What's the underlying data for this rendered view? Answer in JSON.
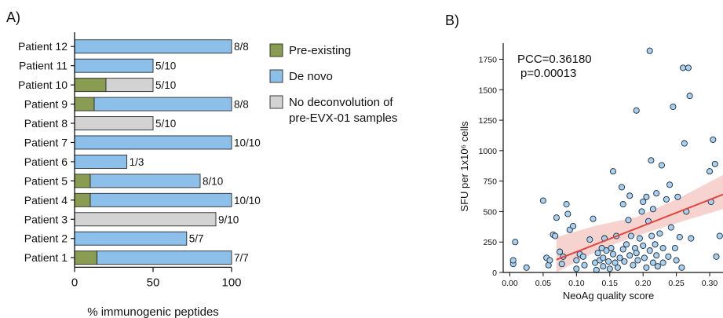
{
  "chart_data": [
    {
      "panel_label": "A)",
      "type": "bar",
      "orientation": "horizontal",
      "stacked": true,
      "categories": [
        "Patient 12",
        "Patient 11",
        "Patient 10",
        "Patient 9",
        "Patient 8",
        "Patient 7",
        "Patient 6",
        "Patient 5",
        "Patient 4",
        "Patient 3",
        "Patient 2",
        "Patient 1"
      ],
      "series": [
        {
          "name": "Pre-existing",
          "color": "#8a9b52",
          "values": [
            0,
            0,
            20,
            12.5,
            0,
            0,
            0,
            10,
            10,
            0,
            0,
            14.3
          ]
        },
        {
          "name": "De novo",
          "color": "#8cc0ea",
          "values": [
            100,
            50,
            0,
            87.5,
            0,
            100,
            33.3,
            70,
            90,
            0,
            71.4,
            85.7
          ]
        },
        {
          "name": "No deconvolution of\npre-EVX-01 samples",
          "color": "#d3d3d3",
          "values": [
            0,
            0,
            30,
            0,
            50,
            0,
            0,
            0,
            0,
            90,
            0,
            0
          ]
        }
      ],
      "bar_labels": [
        "8/8",
        "5/10",
        "5/10",
        "8/8",
        "5/10",
        "10/10",
        "1/3",
        "8/10",
        "10/10",
        "9/10",
        "5/7",
        "7/7"
      ],
      "xlabel": "% immunogenic peptides",
      "ylabel": "",
      "xlim": [
        0,
        100
      ],
      "xticks": [
        0,
        50,
        100
      ],
      "grid": false,
      "legend": "right"
    },
    {
      "panel_label": "B)",
      "type": "scatter",
      "xlabel": "NeoAg quality score",
      "ylabel": "SFU per 1x10⁶ cells",
      "xlim": [
        -0.01,
        0.32
      ],
      "ylim": [
        0,
        1850
      ],
      "xticks": [
        0.0,
        0.05,
        0.1,
        0.15,
        0.2,
        0.25,
        0.3
      ],
      "xtick_labels": [
        "0.00",
        "0.05",
        "0.10",
        "0.15",
        "0.20",
        "0.25",
        "0.30"
      ],
      "yticks": [
        0,
        250,
        500,
        750,
        1000,
        1250,
        1500,
        1750
      ],
      "annotation_lines": [
        "PCC=0.36180",
        "p=0.00013"
      ],
      "point_color": "#a9d0ee",
      "fit_color": "#e0443c",
      "band_color": "#f4c4c0",
      "regression": {
        "x": [
          0.07,
          0.32
        ],
        "y": [
          105,
          640
        ]
      },
      "confidence_band": {
        "x": [
          0.07,
          0.13,
          0.19,
          0.25,
          0.32
        ],
        "lower": [
          0,
          175,
          300,
          405,
          520
        ],
        "upper": [
          290,
          385,
          455,
          600,
          800
        ]
      },
      "points": [
        [
          0.005,
          70
        ],
        [
          0.005,
          100
        ],
        [
          0.008,
          250
        ],
        [
          0.025,
          40
        ],
        [
          0.05,
          590
        ],
        [
          0.055,
          120
        ],
        [
          0.058,
          60
        ],
        [
          0.06,
          100
        ],
        [
          0.065,
          310
        ],
        [
          0.068,
          300
        ],
        [
          0.07,
          450
        ],
        [
          0.075,
          170
        ],
        [
          0.078,
          70
        ],
        [
          0.08,
          130
        ],
        [
          0.085,
          560
        ],
        [
          0.087,
          480
        ],
        [
          0.09,
          350
        ],
        [
          0.095,
          380
        ],
        [
          0.1,
          100
        ],
        [
          0.1,
          30
        ],
        [
          0.105,
          150
        ],
        [
          0.11,
          130
        ],
        [
          0.112,
          60
        ],
        [
          0.12,
          270
        ],
        [
          0.125,
          440
        ],
        [
          0.128,
          80
        ],
        [
          0.13,
          20
        ],
        [
          0.132,
          160
        ],
        [
          0.135,
          100
        ],
        [
          0.138,
          200
        ],
        [
          0.14,
          120
        ],
        [
          0.14,
          50
        ],
        [
          0.142,
          280
        ],
        [
          0.145,
          180
        ],
        [
          0.148,
          90
        ],
        [
          0.15,
          30
        ],
        [
          0.152,
          200
        ],
        [
          0.155,
          150
        ],
        [
          0.155,
          830
        ],
        [
          0.158,
          80
        ],
        [
          0.16,
          300
        ],
        [
          0.162,
          40
        ],
        [
          0.165,
          120
        ],
        [
          0.168,
          700
        ],
        [
          0.17,
          190
        ],
        [
          0.17,
          560
        ],
        [
          0.172,
          90
        ],
        [
          0.175,
          230
        ],
        [
          0.178,
          430
        ],
        [
          0.18,
          630
        ],
        [
          0.18,
          140
        ],
        [
          0.182,
          300
        ],
        [
          0.185,
          60
        ],
        [
          0.188,
          200
        ],
        [
          0.19,
          1330
        ],
        [
          0.19,
          160
        ],
        [
          0.192,
          100
        ],
        [
          0.195,
          280
        ],
        [
          0.198,
          500
        ],
        [
          0.2,
          580
        ],
        [
          0.2,
          220
        ],
        [
          0.202,
          120
        ],
        [
          0.205,
          620
        ],
        [
          0.205,
          40
        ],
        [
          0.208,
          420
        ],
        [
          0.21,
          1820
        ],
        [
          0.21,
          180
        ],
        [
          0.212,
          920
        ],
        [
          0.213,
          300
        ],
        [
          0.215,
          80
        ],
        [
          0.215,
          520
        ],
        [
          0.218,
          230
        ],
        [
          0.22,
          650
        ],
        [
          0.22,
          140
        ],
        [
          0.222,
          50
        ],
        [
          0.225,
          320
        ],
        [
          0.228,
          880
        ],
        [
          0.23,
          200
        ],
        [
          0.23,
          80
        ],
        [
          0.235,
          600
        ],
        [
          0.238,
          130
        ],
        [
          0.24,
          720
        ],
        [
          0.242,
          370
        ],
        [
          0.245,
          1360
        ],
        [
          0.248,
          200
        ],
        [
          0.25,
          100
        ],
        [
          0.252,
          620
        ],
        [
          0.255,
          290
        ],
        [
          0.258,
          40
        ],
        [
          0.26,
          1680
        ],
        [
          0.262,
          1060
        ],
        [
          0.265,
          500
        ],
        [
          0.268,
          1680
        ],
        [
          0.27,
          1450
        ],
        [
          0.272,
          280
        ],
        [
          0.3,
          830
        ],
        [
          0.302,
          580
        ],
        [
          0.305,
          1090
        ],
        [
          0.308,
          890
        ],
        [
          0.31,
          130
        ],
        [
          0.315,
          300
        ]
      ]
    }
  ]
}
